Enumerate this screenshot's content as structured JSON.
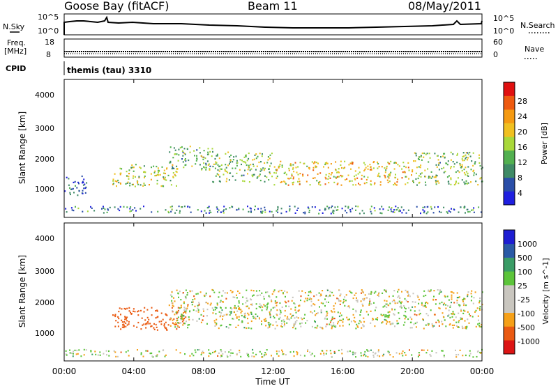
{
  "header": {
    "station": "Goose Bay (fitACF)",
    "beam": "Beam 11",
    "date": "08/May/2011"
  },
  "top_panels": {
    "nsky": {
      "left_label": "N.Sky",
      "left_ticks": [
        "10^5",
        "10^0"
      ],
      "right_ticks": [
        "10^5",
        "10^0"
      ],
      "right_label": "N.Search"
    },
    "freq": {
      "left_label_1": "Freq.",
      "left_label_2": "[MHz]",
      "left_ticks": [
        "18",
        "8"
      ],
      "right_ticks": [
        "60",
        "0"
      ],
      "right_label": "Nave"
    },
    "cpid": {
      "label": "CPID",
      "value": "themis (tau) 3310"
    }
  },
  "x_axis": {
    "label": "Time UT",
    "ticks": [
      "00:00",
      "04:00",
      "08:00",
      "12:00",
      "16:00",
      "20:00",
      "00:00"
    ]
  },
  "colors": {
    "power_scale": [
      "#1f1fe0",
      "#2a4ea8",
      "#3f8a66",
      "#52b050",
      "#a9d83a",
      "#f0c020",
      "#f59a12",
      "#ee5a10",
      "#e01010"
    ],
    "velocity_scale": [
      "#dc1414",
      "#ea5a12",
      "#f5a018",
      "#c9c6bf",
      "#c9c6bf",
      "#5cc43a",
      "#3a9c66",
      "#2a5aa6",
      "#1e1ed2"
    ]
  },
  "chart_data": [
    {
      "type": "heatmap",
      "title": "",
      "xlabel": "Time UT",
      "ylabel": "Slant Range [km]",
      "xlim": [
        "00:00",
        "24:00"
      ],
      "ylim": [
        0,
        4600
      ],
      "y_ticks": [
        "1000",
        "2000",
        "3000",
        "4000"
      ],
      "colorbar": {
        "label": "Power [dB]",
        "range": [
          0,
          32
        ],
        "ticks": [
          "4",
          "8",
          "12",
          "16",
          "20",
          "24",
          "28"
        ]
      },
      "scatter_regions": [
        {
          "time_start": "00:00",
          "time_end": "01:15",
          "range_start_km": 700,
          "range_end_km": 1400,
          "power_db": 6
        },
        {
          "time_start": "02:45",
          "time_end": "06:30",
          "range_start_km": 1050,
          "range_end_km": 1800,
          "power_db": 16
        },
        {
          "time_start": "06:00",
          "time_end": "08:30",
          "range_start_km": 1600,
          "range_end_km": 2400,
          "power_db": 12
        },
        {
          "time_start": "08:30",
          "time_end": "12:00",
          "range_start_km": 1200,
          "range_end_km": 2200,
          "power_db": 14
        },
        {
          "time_start": "12:00",
          "time_end": "20:00",
          "range_start_km": 1100,
          "range_end_km": 1900,
          "power_db": 20
        },
        {
          "time_start": "20:00",
          "time_end": "24:00",
          "range_start_km": 1100,
          "range_end_km": 2200,
          "power_db": 14
        },
        {
          "time_start": "00:00",
          "time_end": "24:00",
          "range_start_km": 150,
          "range_end_km": 400,
          "power_db": 8
        }
      ]
    },
    {
      "type": "heatmap",
      "title": "",
      "xlabel": "Time UT",
      "ylabel": "Slant Range [km]",
      "xlim": [
        "00:00",
        "24:00"
      ],
      "ylim": [
        0,
        4600
      ],
      "y_ticks": [
        "1000",
        "2000",
        "3000",
        "4000"
      ],
      "colorbar": {
        "label": "Velocity [m s^-1]",
        "ticks": [
          "1000",
          "500",
          "100",
          "25",
          "-25",
          "-100",
          "-500",
          "-1000"
        ]
      },
      "scatter_regions": [
        {
          "time_start": "02:45",
          "time_end": "07:00",
          "range_start_km": 1050,
          "range_end_km": 1800,
          "velocity_ms": -300
        },
        {
          "time_start": "06:00",
          "time_end": "24:00",
          "range_start_km": 1100,
          "range_end_km": 2400,
          "velocity_ms": 0
        },
        {
          "time_start": "00:00",
          "time_end": "24:00",
          "range_start_km": 150,
          "range_end_km": 400,
          "velocity_ms": 0
        }
      ]
    }
  ]
}
